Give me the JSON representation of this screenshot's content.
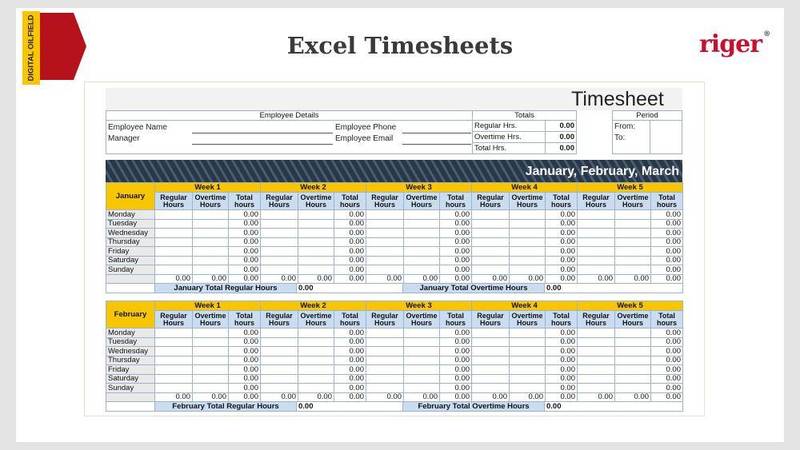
{
  "slide": {
    "badge": "DIGITAL OILFIELD",
    "title": "Excel Timesheets",
    "logo": "riger",
    "logo_mark": "®"
  },
  "sheet": {
    "title": "Timesheet",
    "employee": {
      "header": "Employee Details",
      "fields": [
        "Employee Name",
        "Manager",
        "Employee Phone",
        "Employee Email"
      ]
    },
    "totals": {
      "header": "Totals",
      "rows": [
        {
          "label": "Regular Hrs.",
          "value": "0.00"
        },
        {
          "label": "Overtime Hrs.",
          "value": "0.00"
        },
        {
          "label": "Total Hrs.",
          "value": "0.00"
        }
      ]
    },
    "period": {
      "header": "Period",
      "rows": [
        "From:",
        "To:"
      ]
    },
    "banner": "January, February, March",
    "months": [
      {
        "name": "January",
        "days": [
          "Monday",
          "Tuesday",
          "Wednesday",
          "Thursday",
          "Friday",
          "Saturday",
          "Sunday"
        ],
        "weeks": [
          {
            "label": "Week 1",
            "columns": [
              "Regular Hours",
              "Overtime Hours",
              "Total hours"
            ],
            "daily_totals": [
              "0.00",
              "0.00",
              "0.00",
              "0.00",
              "0.00",
              "0.00",
              "0.00"
            ],
            "sums": [
              "0.00",
              "0.00",
              "0.00"
            ]
          },
          {
            "label": "Week 2",
            "columns": [
              "Regular Hours",
              "Overtime Hours",
              "Total hours"
            ],
            "daily_totals": [
              "0.00",
              "0.00",
              "0.00",
              "0.00",
              "0.00",
              "0.00",
              "0.00"
            ],
            "sums": [
              "0.00",
              "0.00",
              "0.00"
            ]
          },
          {
            "label": "Week 3",
            "columns": [
              "Regular Hours",
              "Overtime Hours",
              "Total hours"
            ],
            "daily_totals": [
              "0.00",
              "0.00",
              "0.00",
              "0.00",
              "0.00",
              "0.00",
              "0.00"
            ],
            "sums": [
              "0.00",
              "0.00",
              "0.00"
            ]
          },
          {
            "label": "Week 4",
            "columns": [
              "Regular Hours",
              "Overtime Hours",
              "Total hours"
            ],
            "daily_totals": [
              "0.00",
              "0.00",
              "0.00",
              "0.00",
              "0.00",
              "0.00",
              "0.00"
            ],
            "sums": [
              "0.00",
              "0.00",
              "0.00"
            ]
          },
          {
            "label": "Week 5",
            "columns": [
              "Regular Hours",
              "Overtime Hours",
              "Total hours"
            ],
            "daily_totals": [
              "0.00",
              "0.00",
              "0.00",
              "0.00",
              "0.00",
              "0.00",
              "0.00"
            ],
            "sums": [
              "0.00",
              "0.00",
              "0.00"
            ]
          }
        ],
        "regular_total_label": "January Total Regular Hours",
        "regular_total": "0.00",
        "overtime_total_label": "January Total Overtime Hours",
        "overtime_total": "0.00"
      },
      {
        "name": "February",
        "days": [
          "Monday",
          "Tuesday",
          "Wednesday",
          "Thursday",
          "Friday",
          "Saturday",
          "Sunday"
        ],
        "weeks": [
          {
            "label": "Week 1",
            "columns": [
              "Regular Hours",
              "Overtime Hours",
              "Total hours"
            ],
            "daily_totals": [
              "0.00",
              "0.00",
              "0.00",
              "0.00",
              "0.00",
              "0.00",
              "0.00"
            ],
            "sums": [
              "0.00",
              "0.00",
              "0.00"
            ]
          },
          {
            "label": "Week 2",
            "columns": [
              "Regular Hours",
              "Overtime Hours",
              "Total hours"
            ],
            "daily_totals": [
              "0.00",
              "0.00",
              "0.00",
              "0.00",
              "0.00",
              "0.00",
              "0.00"
            ],
            "sums": [
              "0.00",
              "0.00",
              "0.00"
            ]
          },
          {
            "label": "Week 3",
            "columns": [
              "Regular Hours",
              "Overtime Hours",
              "Total hours"
            ],
            "daily_totals": [
              "0.00",
              "0.00",
              "0.00",
              "0.00",
              "0.00",
              "0.00",
              "0.00"
            ],
            "sums": [
              "0.00",
              "0.00",
              "0.00"
            ]
          },
          {
            "label": "Week 4",
            "columns": [
              "Regular Hours",
              "Overtime Hours",
              "Total hours"
            ],
            "daily_totals": [
              "0.00",
              "0.00",
              "0.00",
              "0.00",
              "0.00",
              "0.00",
              "0.00"
            ],
            "sums": [
              "0.00",
              "0.00",
              "0.00"
            ]
          },
          {
            "label": "Week 5",
            "columns": [
              "Regular Hours",
              "Overtime Hours",
              "Total hours"
            ],
            "daily_totals": [
              "0.00",
              "0.00",
              "0.00",
              "0.00",
              "0.00",
              "0.00",
              "0.00"
            ],
            "sums": [
              "0.00",
              "0.00",
              "0.00"
            ]
          }
        ],
        "regular_total_label": "February Total Regular Hours",
        "regular_total": "0.00",
        "overtime_total_label": "February Total Overtime Hours",
        "overtime_total": "0.00"
      }
    ]
  }
}
